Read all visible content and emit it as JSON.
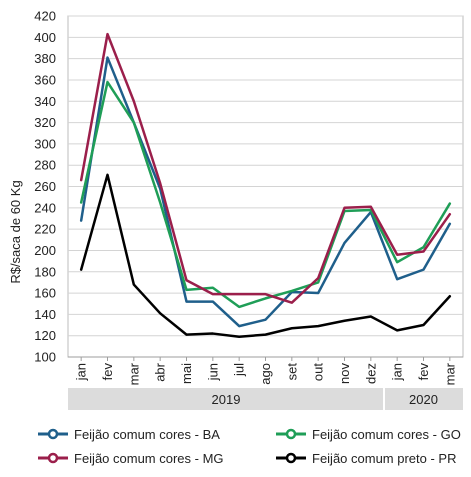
{
  "chart_data": {
    "type": "line",
    "ylabel": "R$/saca de 60 Kg",
    "xlabel": "",
    "ylim": [
      100,
      420
    ],
    "yticks": [
      100,
      120,
      140,
      160,
      180,
      200,
      220,
      240,
      260,
      280,
      300,
      320,
      340,
      360,
      380,
      400,
      420
    ],
    "categories": [
      "jan",
      "fev",
      "mar",
      "abr",
      "mai",
      "jun",
      "jul",
      "ago",
      "set",
      "out",
      "nov",
      "dez",
      "jan",
      "fev",
      "mar"
    ],
    "year_groups": [
      {
        "label": "2019",
        "start": 0,
        "end": 11
      },
      {
        "label": "2020",
        "start": 12,
        "end": 14
      }
    ],
    "grid": true,
    "legend_position": "bottom",
    "series": [
      {
        "name": "Feijão comum cores - BA",
        "color": "#1f5f8b",
        "values": [
          228,
          381,
          320,
          258,
          152,
          152,
          129,
          135,
          161,
          160,
          207,
          236,
          173,
          182,
          225
        ]
      },
      {
        "name": "Feijão comum cores - GO",
        "color": "#1f9e57",
        "values": [
          245,
          358,
          320,
          245,
          163,
          165,
          147,
          155,
          162,
          170,
          237,
          238,
          189,
          203,
          244
        ]
      },
      {
        "name": "Feijão comum cores - MG",
        "color": "#9b1f4b",
        "values": [
          266,
          403,
          340,
          263,
          172,
          159,
          159,
          159,
          151,
          174,
          240,
          241,
          196,
          199,
          234
        ]
      },
      {
        "name": "Feijão comum preto - PR",
        "color": "#000000",
        "values": [
          182,
          271,
          168,
          141,
          121,
          122,
          119,
          121,
          127,
          129,
          134,
          138,
          125,
          130,
          157
        ]
      }
    ]
  }
}
